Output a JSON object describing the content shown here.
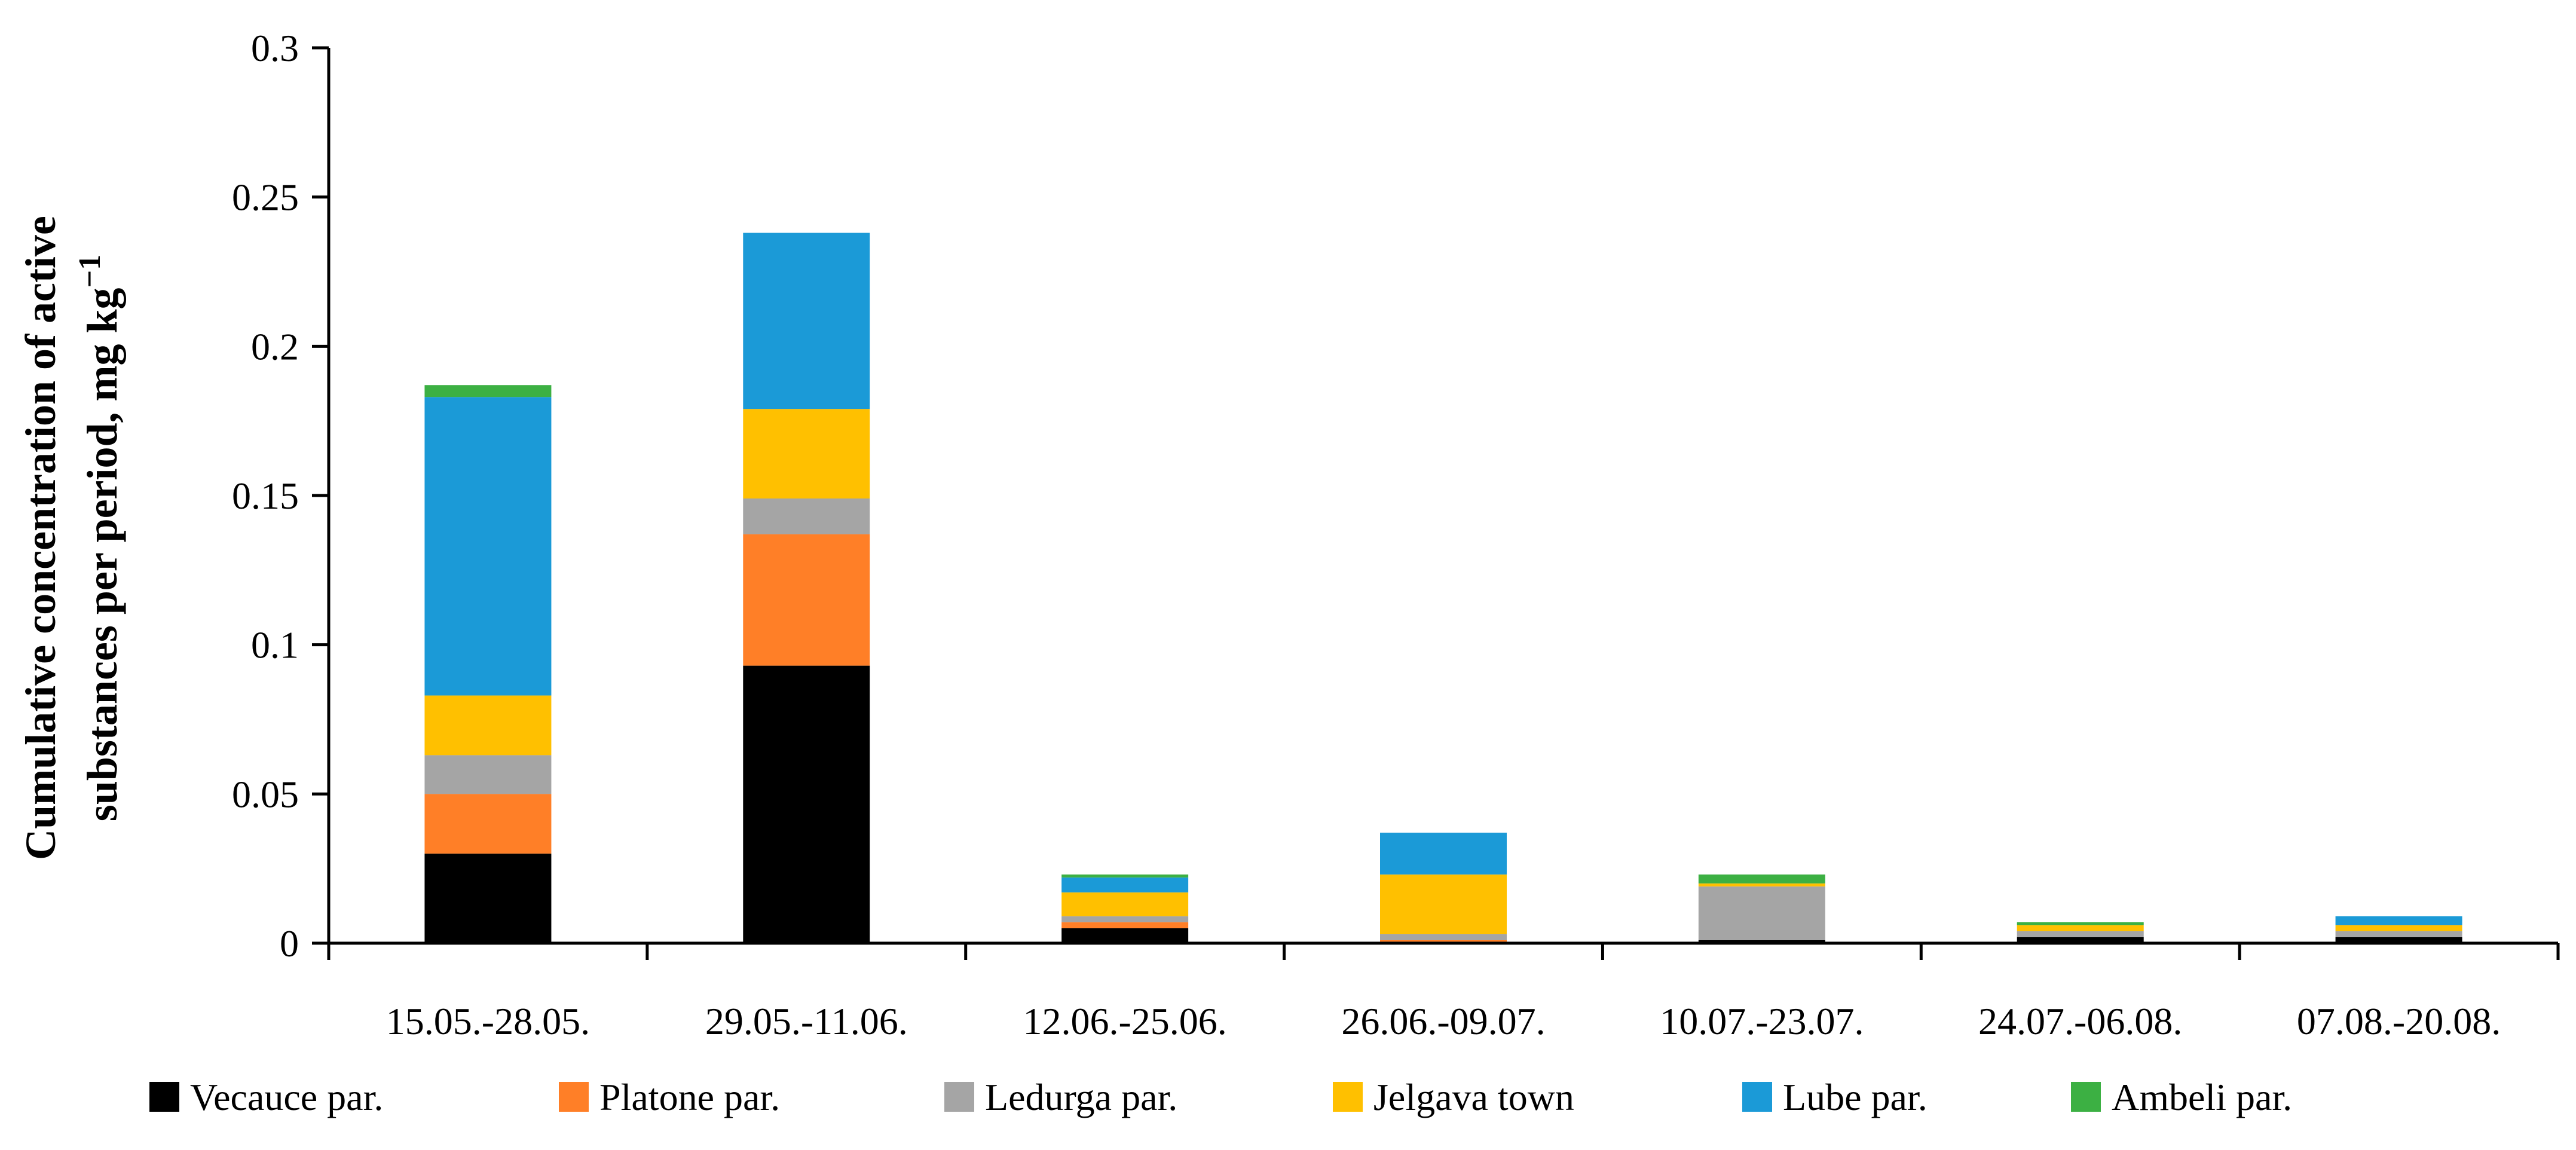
{
  "chart_data": {
    "type": "bar",
    "stacked": true,
    "title": "",
    "xlabel": "",
    "ylabel_line1": "Cumulative concentration of active",
    "ylabel_line2": "substances per period, mg kg",
    "ylabel_superscript": "−1",
    "ylim": [
      0,
      0.3
    ],
    "yticks": [
      {
        "value": 0,
        "label": "0"
      },
      {
        "value": 0.05,
        "label": "0.05"
      },
      {
        "value": 0.1,
        "label": "0.1"
      },
      {
        "value": 0.15,
        "label": "0.15"
      },
      {
        "value": 0.2,
        "label": "0.2"
      },
      {
        "value": 0.25,
        "label": "0.25"
      },
      {
        "value": 0.3,
        "label": "0.3"
      }
    ],
    "grid": false,
    "legend_position": "bottom",
    "categories": [
      "15.05.-28.05.",
      "29.05.-11.06.",
      "12.06.-25.06.",
      "26.06.-09.07.",
      "10.07.-23.07.",
      "24.07.-06.08.",
      "07.08.-20.08."
    ],
    "series": [
      {
        "name": "Vecauce par.",
        "color": "#000000",
        "values": [
          0.03,
          0.093,
          0.005,
          0.0,
          0.001,
          0.002,
          0.002
        ]
      },
      {
        "name": "Platone par.",
        "color": "#FF7F27",
        "values": [
          0.02,
          0.044,
          0.002,
          0.001,
          0.0,
          0.0,
          0.0
        ]
      },
      {
        "name": "Ledurga par.",
        "color": "#A5A5A5",
        "values": [
          0.013,
          0.012,
          0.002,
          0.002,
          0.018,
          0.002,
          0.002
        ]
      },
      {
        "name": "Jelgava town",
        "color": "#FFC000",
        "values": [
          0.02,
          0.03,
          0.008,
          0.02,
          0.001,
          0.002,
          0.002
        ]
      },
      {
        "name": "Lube par.",
        "color": "#1B9AD7",
        "values": [
          0.1,
          0.059,
          0.005,
          0.014,
          0.0,
          0.0,
          0.003
        ]
      },
      {
        "name": "Ambeli par.",
        "color": "#3CB043",
        "values": [
          0.004,
          0.0,
          0.001,
          0.0,
          0.003,
          0.001,
          0.0
        ]
      }
    ]
  }
}
